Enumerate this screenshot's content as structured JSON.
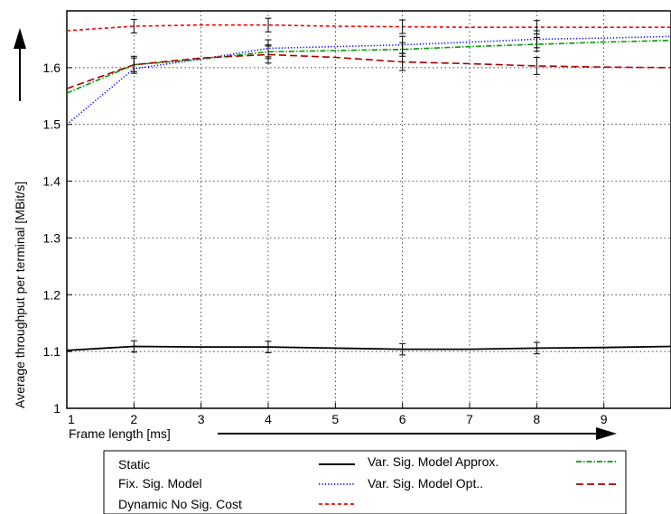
{
  "chart_data": {
    "type": "line",
    "xlabel": "Frame length [ms]",
    "ylabel": "Average throughput per terminal [MBit/s]",
    "xlim": [
      1,
      10
    ],
    "ylim": [
      1,
      1.7
    ],
    "xticks": [
      "1",
      "2",
      "3",
      "4",
      "5",
      "6",
      "7",
      "8",
      "9"
    ],
    "yticks": [
      "1",
      "1.1",
      "1.2",
      "1.3",
      "1.4",
      "1.5",
      "1.6"
    ],
    "grid": true,
    "legend_position": "below",
    "series": [
      {
        "name": "Static",
        "color": "#000000",
        "line_style": "solid",
        "x": [
          1,
          2,
          3,
          4,
          5,
          6,
          7,
          8,
          9,
          10
        ],
        "y": [
          1.102,
          1.109,
          1.108,
          1.108,
          1.106,
          1.104,
          1.104,
          1.106,
          1.107,
          1.109
        ],
        "error_bars_at": [
          2,
          4,
          6,
          8
        ],
        "error": 0.01
      },
      {
        "name": "Fix. Sig. Model",
        "color": "#0000ff",
        "line_style": "dotted",
        "x": [
          1,
          2,
          3,
          4,
          5,
          6,
          7,
          8,
          9,
          10
        ],
        "y": [
          1.5,
          1.598,
          1.615,
          1.634,
          1.637,
          1.64,
          1.645,
          1.65,
          1.652,
          1.655
        ],
        "error_bars_at": [
          4,
          6,
          8
        ],
        "error": 0.015
      },
      {
        "name": "Dynamic No Sig. Cost",
        "color": "#ff0000",
        "line_style": "short-dash",
        "x": [
          1,
          2,
          3,
          4,
          5,
          6,
          7,
          8,
          9,
          10
        ],
        "y": [
          1.665,
          1.673,
          1.675,
          1.675,
          1.673,
          1.672,
          1.671,
          1.671,
          1.671,
          1.671
        ],
        "error_bars_at": [
          2,
          4,
          6,
          8
        ],
        "error": 0.012
      },
      {
        "name": "Var. Sig. Model Approx.",
        "color": "#009900",
        "line_style": "dash-dot",
        "x": [
          1,
          2,
          3,
          4,
          5,
          6,
          7,
          8,
          9,
          10
        ],
        "y": [
          1.555,
          1.605,
          1.615,
          1.628,
          1.63,
          1.632,
          1.637,
          1.641,
          1.645,
          1.648
        ],
        "error_bars_at": [
          2,
          4,
          6,
          8
        ],
        "error": 0.012
      },
      {
        "name": "Var. Sig. Model Opt..",
        "color": "#aa0000",
        "line_style": "dashed",
        "x": [
          1,
          2,
          3,
          4,
          5,
          6,
          7,
          8,
          9,
          10
        ],
        "y": [
          1.563,
          1.605,
          1.617,
          1.623,
          1.618,
          1.61,
          1.607,
          1.603,
          1.601,
          1.6
        ],
        "error_bars_at": [
          2,
          4,
          6,
          8
        ],
        "error": 0.015
      }
    ]
  }
}
